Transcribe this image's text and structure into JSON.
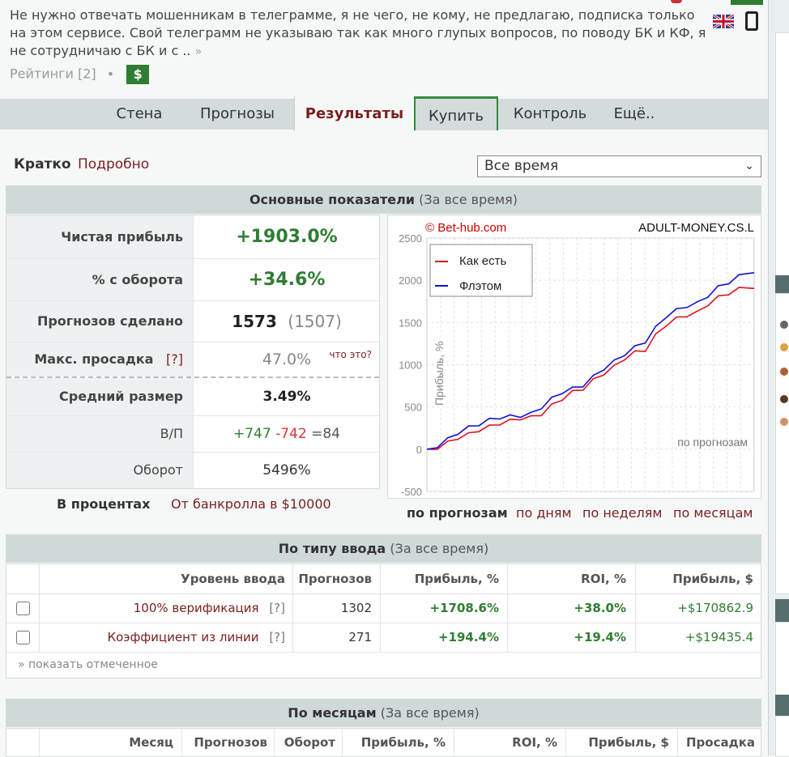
{
  "header": {
    "description": "Не нужно отвечать мошенникам в телеграмме, я не чего, не кому, не предлагаю, подписка только на этом сервисе. Свой телеграмм не указываю так как много глупых вопросов, по поводу БК и КФ, я не сотрудничаю с БК и с ..",
    "more_arrow": "»",
    "ratings_label": "Рейтинги [2]",
    "ratings_dot": "•",
    "dollar_badge": "$"
  },
  "tabs": [
    {
      "label": "Стена"
    },
    {
      "label": "Прогнозы"
    },
    {
      "label": "Результаты"
    },
    {
      "label": "Купить"
    },
    {
      "label": "Контроль"
    },
    {
      "label": "Ещё.."
    }
  ],
  "subnav": {
    "brief": "Кратко",
    "detailed": "Подробно"
  },
  "period_select": {
    "value": "Все время",
    "chevron": "⌄"
  },
  "main_stats": {
    "title": "Основные показатели",
    "period": "(За все время)",
    "rows": [
      {
        "label": "Чистая прибыль",
        "value": "+1903.0%"
      },
      {
        "label": "% с оборота",
        "value": "+34.6%"
      },
      {
        "label": "Прогнозов сделано",
        "value": "1573",
        "extra": "(1507)"
      },
      {
        "label": "Макс. просадка",
        "help": "[?]",
        "value": "47.0%",
        "note": "что это?"
      },
      {
        "label": "Средний размер",
        "value": "3.49%"
      },
      {
        "label": "В/П",
        "wins": "+747",
        "losses": "-742",
        "eq": "=84"
      },
      {
        "label": "Оборот",
        "value": "5496%"
      }
    ],
    "percent_label": "В процентах",
    "bankroll_label": "От банкролла в $10000"
  },
  "chart_data": {
    "type": "line",
    "watermark": "© Bet-hub.com",
    "site_label": "ADULT-MONEY.CS.L",
    "ylabel": "Прибыль, %",
    "xlabel_note": "по прогнозам",
    "ylim": [
      -500,
      2500
    ],
    "yticks": [
      "2500",
      "2000",
      "1500",
      "1000",
      "500",
      "0",
      "-500"
    ],
    "x": [
      0,
      50,
      100,
      150,
      200,
      250,
      300,
      350,
      400,
      450,
      500,
      550,
      600,
      650,
      700,
      750,
      800,
      850,
      900,
      950,
      1000,
      1050,
      1100,
      1150,
      1200,
      1250,
      1300,
      1350,
      1400,
      1450,
      1500,
      1573
    ],
    "series": [
      {
        "name": "Как есть",
        "color": "#e0101e",
        "values": [
          0,
          20,
          80,
          140,
          180,
          230,
          270,
          310,
          340,
          370,
          380,
          420,
          520,
          600,
          680,
          720,
          820,
          900,
          980,
          1080,
          1150,
          1180,
          1350,
          1480,
          1550,
          1590,
          1620,
          1720,
          1800,
          1850,
          1900,
          1903
        ]
      },
      {
        "name": "Флэтом",
        "color": "#1010d8",
        "values": [
          0,
          40,
          120,
          200,
          260,
          300,
          350,
          380,
          390,
          400,
          420,
          500,
          600,
          680,
          720,
          760,
          860,
          960,
          1040,
          1130,
          1210,
          1280,
          1440,
          1580,
          1650,
          1700,
          1730,
          1820,
          1920,
          1980,
          2050,
          2090
        ]
      }
    ],
    "view_tabs": [
      "по прогнозам",
      "по дням",
      "по неделям",
      "по месяцам"
    ]
  },
  "entry_type": {
    "title": "По типу ввода",
    "period": "(За все время)",
    "headers": [
      "Уровень ввода",
      "Прогнозов",
      "Прибыль, %",
      "ROI, %",
      "Прибыль, $"
    ],
    "rows": [
      {
        "level": "100% верификация",
        "help": "[?]",
        "count": "1302",
        "profit_pct": "+1708.6%",
        "roi": "+38.0%",
        "profit_usd": "+$170862.9"
      },
      {
        "level": "Коэффициент из линии",
        "help": "[?]",
        "count": "271",
        "profit_pct": "+194.4%",
        "roi": "+19.4%",
        "profit_usd": "+$19435.4"
      }
    ],
    "show_selected": "» показать отмеченное"
  },
  "months": {
    "title": "По месяцам",
    "period": "(За все время)",
    "headers": [
      "Месяц",
      "Прогнозов",
      "Оборот",
      "Прибыль, %",
      "ROI, %",
      "Прибыль, $",
      "Просадка"
    ]
  },
  "colors": {
    "accent_green": "#2f7d32",
    "maroon": "#7a1e1e",
    "header_bg": "#cfd9d9"
  }
}
